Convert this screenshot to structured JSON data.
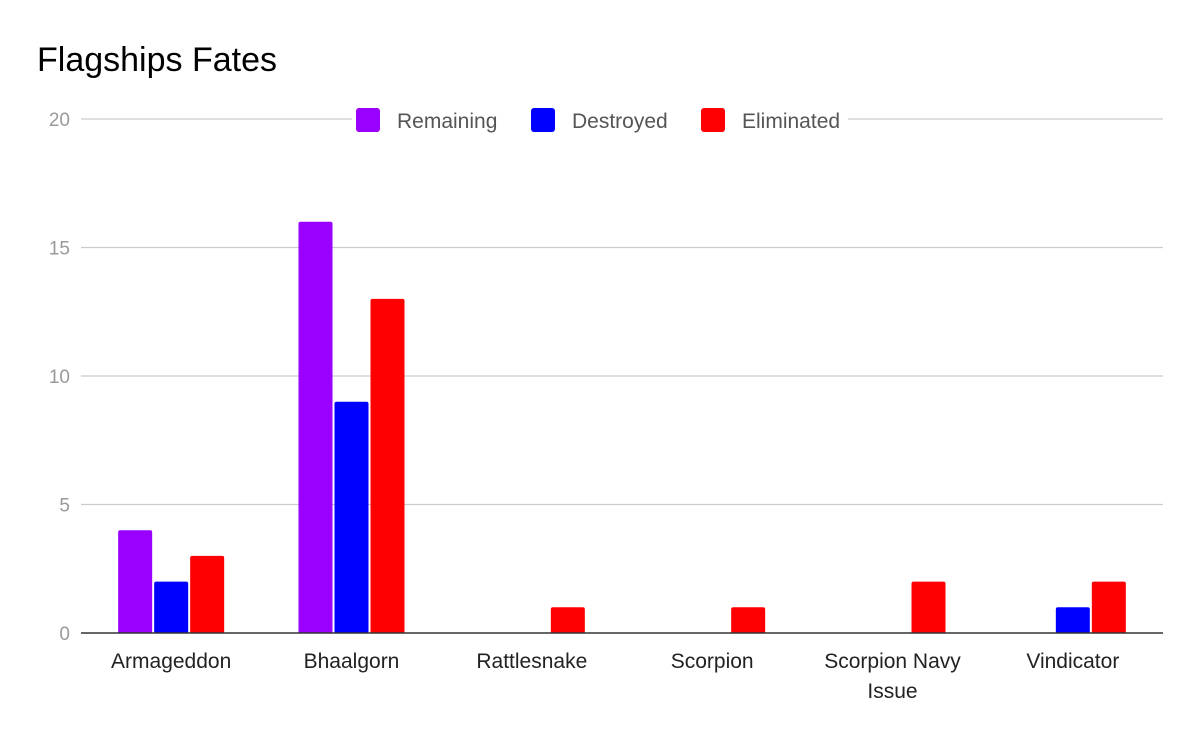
{
  "chart_data": {
    "type": "bar",
    "title": "Flagships Fates",
    "xlabel": "",
    "ylabel": "",
    "ylim": [
      0,
      20
    ],
    "yticks": [
      0,
      5,
      10,
      15,
      20
    ],
    "categories": [
      "Armageddon",
      "Bhaalgorn",
      "Rattlesnake",
      "Scorpion",
      "Scorpion Navy Issue",
      "Vindicator"
    ],
    "category_lines": [
      [
        "Armageddon"
      ],
      [
        "Bhaalgorn"
      ],
      [
        "Rattlesnake"
      ],
      [
        "Scorpion"
      ],
      [
        "Scorpion Navy",
        "Issue"
      ],
      [
        "Vindicator"
      ]
    ],
    "series": [
      {
        "name": "Remaining",
        "color": "#9900ff",
        "values": [
          4,
          16,
          0,
          0,
          0,
          0
        ]
      },
      {
        "name": "Destroyed",
        "color": "#0000ff",
        "values": [
          2,
          9,
          0,
          0,
          0,
          1
        ]
      },
      {
        "name": "Eliminated",
        "color": "#ff0000",
        "values": [
          3,
          13,
          1,
          1,
          2,
          2
        ]
      }
    ],
    "grid": true,
    "legend_position": "top-center"
  }
}
